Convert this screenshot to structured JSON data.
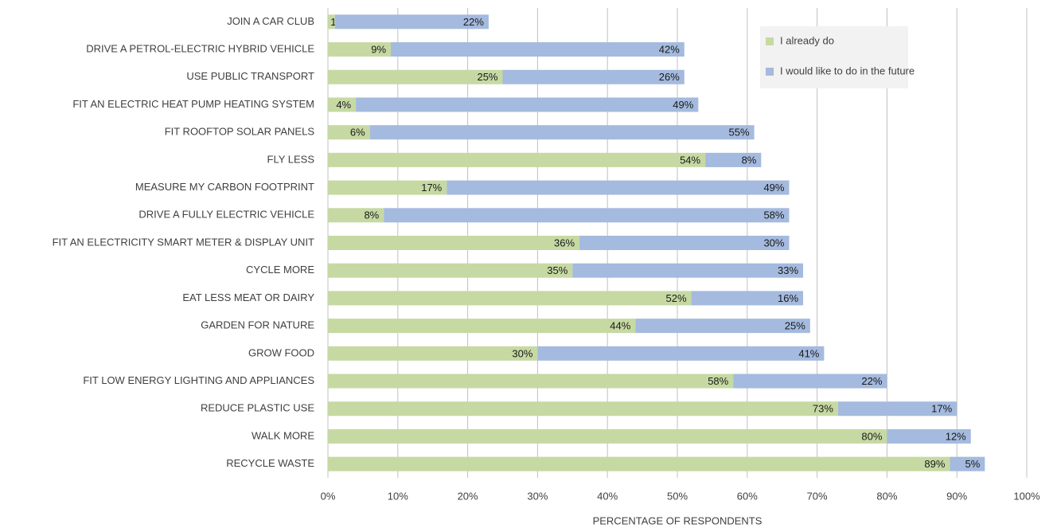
{
  "chart_data": {
    "type": "bar",
    "orientation": "horizontal",
    "stacked": true,
    "xlabel": "PERCENTAGE OF RESPONDENTS",
    "categories": [
      "JOIN A CAR CLUB",
      "DRIVE A PETROL-ELECTRIC HYBRID VEHICLE",
      "USE PUBLIC TRANSPORT",
      "FIT AN ELECTRIC HEAT PUMP HEATING SYSTEM",
      "FIT ROOFTOP SOLAR PANELS",
      "FLY LESS",
      "MEASURE MY CARBON FOOTPRINT",
      "DRIVE A FULLY ELECTRIC VEHICLE",
      "FIT AN ELECTRICITY SMART METER & DISPLAY UNIT",
      "CYCLE MORE",
      "EAT LESS MEAT OR DAIRY",
      "GARDEN FOR NATURE",
      "GROW FOOD",
      "FIT LOW ENERGY LIGHTING AND APPLIANCES",
      "REDUCE PLASTIC USE",
      "WALK MORE",
      "RECYCLE WASTE"
    ],
    "series": [
      {
        "name": "I already do",
        "color": "#c6d9a3",
        "values": [
          1,
          9,
          25,
          4,
          6,
          54,
          17,
          8,
          36,
          35,
          52,
          44,
          30,
          58,
          73,
          80,
          89
        ],
        "value_labels": [
          "1%",
          "9%",
          "25%",
          "4%",
          "6%",
          "54%",
          "17%",
          "8%",
          "36%",
          "35%",
          "52%",
          "44%",
          "30%",
          "58%",
          "73%",
          "80%",
          "89%"
        ]
      },
      {
        "name": "I would like to do in the future",
        "color": "#a4bade",
        "values": [
          22,
          42,
          26,
          49,
          55,
          8,
          49,
          58,
          30,
          33,
          16,
          25,
          41,
          22,
          17,
          12,
          5
        ],
        "value_labels": [
          "22%",
          "42%",
          "26%",
          "49%",
          "55%",
          "8%",
          "49%",
          "58%",
          "30%",
          "33%",
          "16%",
          "25%",
          "41%",
          "22%",
          "17%",
          "12%",
          "5%"
        ]
      }
    ],
    "xlim": [
      0,
      100
    ],
    "xticks": [
      {
        "value": 0,
        "label": "0%"
      },
      {
        "value": 10,
        "label": "10%"
      },
      {
        "value": 20,
        "label": "20%"
      },
      {
        "value": 30,
        "label": "30%"
      },
      {
        "value": 40,
        "label": "40%"
      },
      {
        "value": 50,
        "label": "50%"
      },
      {
        "value": 60,
        "label": "60%"
      },
      {
        "value": 70,
        "label": "70%"
      },
      {
        "value": 80,
        "label": "80%"
      },
      {
        "value": 90,
        "label": "90%"
      },
      {
        "value": 100,
        "label": "100%"
      }
    ],
    "grid": true,
    "legend": "upper right"
  }
}
